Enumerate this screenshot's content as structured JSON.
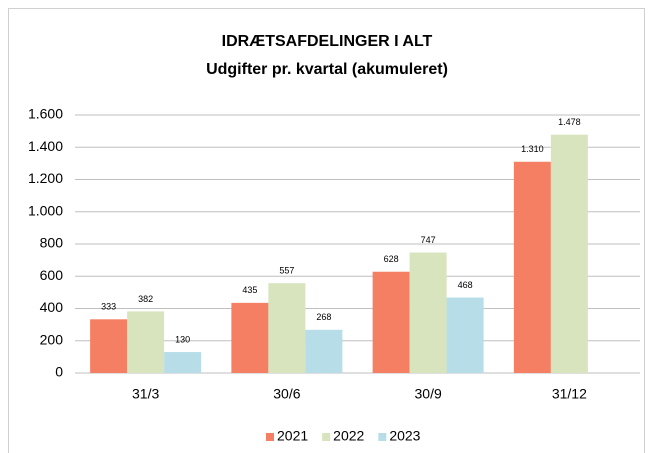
{
  "chart_data": {
    "type": "bar",
    "title": "IDRÆTSAFDELINGER I ALT",
    "subtitle": "Udgifter pr. kvartal (akumuleret)",
    "categories": [
      "31/3",
      "30/6",
      "30/9",
      "31/12"
    ],
    "series": [
      {
        "name": "2021",
        "color": "#f47f62",
        "values": [
          333,
          435,
          628,
          1310
        ],
        "value_labels": [
          "333",
          "435",
          "628",
          "1.310"
        ]
      },
      {
        "name": "2022",
        "color": "#d7e4bd",
        "values": [
          382,
          557,
          747,
          1478
        ],
        "value_labels": [
          "382",
          "557",
          "747",
          "1.478"
        ]
      },
      {
        "name": "2023",
        "color": "#b7dee8",
        "values": [
          130,
          268,
          468,
          null
        ]
      }
    ],
    "ylim": [
      0,
      1600
    ],
    "yticks": [
      0,
      200,
      400,
      600,
      800,
      {
        "value": 1000,
        "label": "1.000"
      },
      {
        "value": 1200,
        "label": "1.200"
      },
      {
        "value": 1400,
        "label": "1.400"
      },
      {
        "value": 1600,
        "label": "1.600"
      }
    ],
    "grid": true,
    "legend": "bottom"
  }
}
